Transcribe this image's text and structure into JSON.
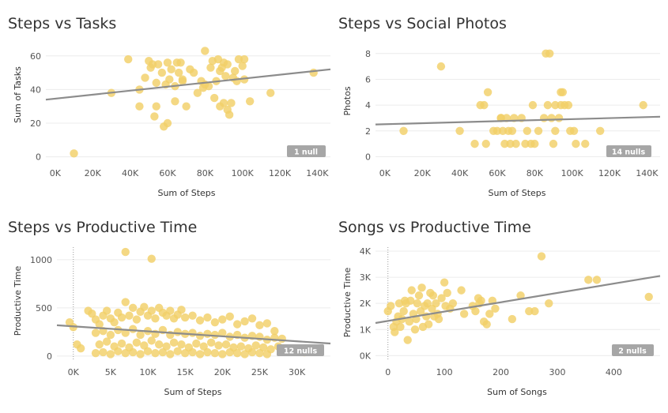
{
  "colors": {
    "point": "#f2cf68",
    "trend": "#8c8c8c",
    "grid": "#ececec",
    "null_badge": "#a6a6a6"
  },
  "chart_data": [
    {
      "type": "scatter",
      "title": "Steps vs Tasks",
      "xlabel": "Sum of Steps",
      "ylabel": "Sum of Tasks",
      "xticks": [
        0,
        20000,
        40000,
        60000,
        80000,
        100000,
        120000,
        140000
      ],
      "xtick_labels": [
        "0K",
        "20K",
        "40K",
        "60K",
        "80K",
        "100K",
        "120K",
        "140K"
      ],
      "yticks": [
        0,
        20,
        40,
        60
      ],
      "ytick_labels": [
        "0",
        "20",
        "40",
        "60"
      ],
      "xlim": [
        -5000,
        147000
      ],
      "ylim": [
        -3,
        66
      ],
      "x_zero_line": false,
      "null_badge": "1 null",
      "trend": [
        [
          -5000,
          34
        ],
        [
          147000,
          52
        ]
      ],
      "points": [
        [
          10000,
          2
        ],
        [
          30000,
          38
        ],
        [
          39000,
          58
        ],
        [
          45000,
          40
        ],
        [
          45000,
          30
        ],
        [
          48000,
          47
        ],
        [
          50000,
          57
        ],
        [
          51000,
          53
        ],
        [
          52000,
          55
        ],
        [
          53000,
          24
        ],
        [
          54000,
          44
        ],
        [
          54000,
          30
        ],
        [
          55000,
          55
        ],
        [
          57000,
          50
        ],
        [
          58000,
          18
        ],
        [
          59000,
          43
        ],
        [
          60000,
          20
        ],
        [
          60000,
          56
        ],
        [
          61000,
          46
        ],
        [
          62000,
          52
        ],
        [
          64000,
          33
        ],
        [
          64000,
          42
        ],
        [
          65000,
          56
        ],
        [
          66000,
          50
        ],
        [
          67000,
          56
        ],
        [
          68000,
          45
        ],
        [
          68000,
          46
        ],
        [
          70000,
          30
        ],
        [
          72000,
          52
        ],
        [
          74000,
          50
        ],
        [
          76000,
          38
        ],
        [
          78000,
          45
        ],
        [
          79000,
          41
        ],
        [
          80000,
          63
        ],
        [
          80000,
          43
        ],
        [
          82000,
          42
        ],
        [
          83000,
          53
        ],
        [
          84000,
          57
        ],
        [
          85000,
          35
        ],
        [
          86000,
          45
        ],
        [
          87000,
          58
        ],
        [
          88000,
          51
        ],
        [
          88000,
          30
        ],
        [
          89000,
          53
        ],
        [
          90000,
          56
        ],
        [
          90000,
          32
        ],
        [
          91000,
          48
        ],
        [
          92000,
          28
        ],
        [
          92000,
          55
        ],
        [
          93000,
          25
        ],
        [
          94000,
          32
        ],
        [
          95000,
          47
        ],
        [
          96000,
          51
        ],
        [
          97000,
          45
        ],
        [
          98000,
          58
        ],
        [
          100000,
          54
        ],
        [
          101000,
          58
        ],
        [
          101000,
          46
        ],
        [
          104000,
          33
        ],
        [
          115000,
          38
        ],
        [
          138000,
          50
        ]
      ]
    },
    {
      "type": "scatter",
      "title": "Steps vs Social Photos",
      "xlabel": "Sum of Steps",
      "ylabel": "Photos",
      "xticks": [
        0,
        20000,
        40000,
        60000,
        80000,
        100000,
        120000,
        140000
      ],
      "xtick_labels": [
        "0K",
        "20K",
        "40K",
        "60K",
        "80K",
        "100K",
        "120K",
        "140K"
      ],
      "yticks": [
        0,
        2,
        4,
        6,
        8
      ],
      "ytick_labels": [
        "0",
        "2",
        "4",
        "6",
        "8"
      ],
      "xlim": [
        -5000,
        147000
      ],
      "ylim": [
        -0.4,
        8.6
      ],
      "x_zero_line": false,
      "null_badge": "14 nulls",
      "trend": [
        [
          -5000,
          2.5
        ],
        [
          147000,
          3.1
        ]
      ],
      "points": [
        [
          10000,
          2
        ],
        [
          30000,
          7
        ],
        [
          40000,
          2
        ],
        [
          48000,
          1
        ],
        [
          51000,
          4
        ],
        [
          53000,
          4
        ],
        [
          54000,
          1
        ],
        [
          55000,
          5
        ],
        [
          58000,
          2
        ],
        [
          60000,
          2
        ],
        [
          62000,
          3
        ],
        [
          62000,
          3
        ],
        [
          63000,
          2
        ],
        [
          64000,
          1
        ],
        [
          65000,
          3
        ],
        [
          66000,
          2
        ],
        [
          67000,
          1
        ],
        [
          68000,
          2
        ],
        [
          69000,
          3
        ],
        [
          70000,
          1
        ],
        [
          73000,
          3
        ],
        [
          75000,
          1
        ],
        [
          76000,
          2
        ],
        [
          78000,
          1
        ],
        [
          79000,
          4
        ],
        [
          80000,
          1
        ],
        [
          82000,
          2
        ],
        [
          85000,
          3
        ],
        [
          86000,
          8
        ],
        [
          88000,
          8
        ],
        [
          87000,
          4
        ],
        [
          89000,
          3
        ],
        [
          90000,
          1
        ],
        [
          91000,
          4
        ],
        [
          91000,
          2
        ],
        [
          93000,
          3
        ],
        [
          94000,
          4
        ],
        [
          94000,
          5
        ],
        [
          95000,
          5
        ],
        [
          96000,
          4
        ],
        [
          98000,
          4
        ],
        [
          99000,
          2
        ],
        [
          101000,
          2
        ],
        [
          102000,
          1
        ],
        [
          107000,
          1
        ],
        [
          115000,
          2
        ],
        [
          138000,
          4
        ]
      ]
    },
    {
      "type": "scatter",
      "title": "Steps vs Productive Time",
      "xlabel": "Sum of Steps",
      "ylabel": "Productive Time",
      "xticks": [
        0,
        5000,
        10000,
        15000,
        20000,
        25000,
        30000
      ],
      "xtick_labels": [
        "0K",
        "5K",
        "10K",
        "15K",
        "20K",
        "25K",
        "30K"
      ],
      "yticks": [
        0,
        500,
        1000
      ],
      "ytick_labels": [
        "0",
        "500",
        "1000"
      ],
      "xlim": [
        -2200,
        34500
      ],
      "ylim": [
        -50,
        1130
      ],
      "x_zero_line": true,
      "null_badge": "12 nulls",
      "trend": [
        [
          -2200,
          320
        ],
        [
          34500,
          130
        ]
      ],
      "points": [
        [
          7000,
          1080
        ],
        [
          10500,
          1010
        ],
        [
          2000,
          470
        ],
        [
          2500,
          440
        ],
        [
          3000,
          380
        ],
        [
          3500,
          330
        ],
        [
          4000,
          420
        ],
        [
          4500,
          470
        ],
        [
          5000,
          390
        ],
        [
          5500,
          350
        ],
        [
          6000,
          450
        ],
        [
          6500,
          400
        ],
        [
          7000,
          560
        ],
        [
          7500,
          420
        ],
        [
          8000,
          500
        ],
        [
          8500,
          380
        ],
        [
          9000,
          460
        ],
        [
          9500,
          510
        ],
        [
          10000,
          420
        ],
        [
          10500,
          470
        ],
        [
          11000,
          390
        ],
        [
          11500,
          500
        ],
        [
          12000,
          450
        ],
        [
          12500,
          420
        ],
        [
          13000,
          470
        ],
        [
          13500,
          390
        ],
        [
          14000,
          430
        ],
        [
          14500,
          480
        ],
        [
          15000,
          400
        ],
        [
          16000,
          420
        ],
        [
          17000,
          370
        ],
        [
          18000,
          400
        ],
        [
          19000,
          350
        ],
        [
          20000,
          380
        ],
        [
          21000,
          410
        ],
        [
          22000,
          330
        ],
        [
          23000,
          360
        ],
        [
          24000,
          390
        ],
        [
          25000,
          320
        ],
        [
          26000,
          340
        ],
        [
          27000,
          260
        ],
        [
          -500,
          350
        ],
        [
          0,
          300
        ],
        [
          3000,
          240
        ],
        [
          4000,
          260
        ],
        [
          5000,
          220
        ],
        [
          6000,
          270
        ],
        [
          7000,
          240
        ],
        [
          8000,
          280
        ],
        [
          9000,
          220
        ],
        [
          10000,
          260
        ],
        [
          11000,
          230
        ],
        [
          12000,
          270
        ],
        [
          13000,
          220
        ],
        [
          14000,
          250
        ],
        [
          15000,
          230
        ],
        [
          16000,
          240
        ],
        [
          17000,
          210
        ],
        [
          18000,
          230
        ],
        [
          19000,
          220
        ],
        [
          20000,
          240
        ],
        [
          21000,
          200
        ],
        [
          22000,
          220
        ],
        [
          23000,
          190
        ],
        [
          24000,
          210
        ],
        [
          25000,
          200
        ],
        [
          26000,
          170
        ],
        [
          27000,
          190
        ],
        [
          28000,
          180
        ],
        [
          3500,
          120
        ],
        [
          4500,
          150
        ],
        [
          5500,
          100
        ],
        [
          6500,
          130
        ],
        [
          7500,
          90
        ],
        [
          8500,
          140
        ],
        [
          9500,
          110
        ],
        [
          10500,
          160
        ],
        [
          11500,
          120
        ],
        [
          12500,
          100
        ],
        [
          13500,
          140
        ],
        [
          14500,
          120
        ],
        [
          15500,
          90
        ],
        [
          16500,
          130
        ],
        [
          17500,
          100
        ],
        [
          18500,
          140
        ],
        [
          19500,
          110
        ],
        [
          20500,
          120
        ],
        [
          21500,
          90
        ],
        [
          22500,
          100
        ],
        [
          23500,
          80
        ],
        [
          24500,
          110
        ],
        [
          25500,
          90
        ],
        [
          26500,
          70
        ],
        [
          27500,
          100
        ],
        [
          28500,
          80
        ],
        [
          500,
          120
        ],
        [
          1000,
          80
        ],
        [
          3000,
          30
        ],
        [
          4000,
          40
        ],
        [
          5000,
          20
        ],
        [
          6000,
          50
        ],
        [
          7000,
          30
        ],
        [
          8000,
          40
        ],
        [
          9000,
          20
        ],
        [
          10000,
          50
        ],
        [
          11000,
          30
        ],
        [
          12000,
          40
        ],
        [
          13000,
          20
        ],
        [
          14000,
          50
        ],
        [
          15000,
          30
        ],
        [
          16000,
          40
        ],
        [
          17000,
          20
        ],
        [
          18000,
          40
        ],
        [
          19000,
          30
        ],
        [
          20000,
          20
        ],
        [
          21000,
          40
        ],
        [
          22000,
          30
        ],
        [
          23000,
          20
        ],
        [
          24000,
          40
        ],
        [
          25000,
          30
        ],
        [
          26000,
          20
        ],
        [
          30000,
          60
        ],
        [
          31000,
          40
        ]
      ]
    },
    {
      "type": "scatter",
      "title": "Songs vs Productive Time",
      "xlabel": "Sum of Songs",
      "ylabel": "Productive Time",
      "xticks": [
        0,
        100,
        200,
        300,
        400
      ],
      "xtick_labels": [
        "0",
        "100",
        "200",
        "300",
        "400"
      ],
      "yticks": [
        0,
        1000,
        2000,
        3000,
        4000
      ],
      "ytick_labels": [
        "0K",
        "1K",
        "2K",
        "3K",
        "4K"
      ],
      "xlim": [
        -22,
        482
      ],
      "ylim": [
        -200,
        4150
      ],
      "x_zero_line": true,
      "null_badge": "2 nulls",
      "trend": [
        [
          -22,
          1250
        ],
        [
          482,
          3050
        ]
      ],
      "points": [
        [
          0,
          1700
        ],
        [
          5,
          1900
        ],
        [
          10,
          1100
        ],
        [
          12,
          900
        ],
        [
          15,
          1300
        ],
        [
          18,
          1500
        ],
        [
          20,
          2000
        ],
        [
          22,
          1100
        ],
        [
          25,
          1400
        ],
        [
          28,
          1700
        ],
        [
          30,
          2100
        ],
        [
          32,
          2000
        ],
        [
          35,
          600
        ],
        [
          38,
          1300
        ],
        [
          40,
          2100
        ],
        [
          42,
          2500
        ],
        [
          45,
          1600
        ],
        [
          48,
          1000
        ],
        [
          50,
          1400
        ],
        [
          52,
          2000
        ],
        [
          55,
          2300
        ],
        [
          58,
          1700
        ],
        [
          60,
          2600
        ],
        [
          62,
          1100
        ],
        [
          65,
          1900
        ],
        [
          68,
          1500
        ],
        [
          70,
          2000
        ],
        [
          72,
          1200
        ],
        [
          75,
          2400
        ],
        [
          78,
          1800
        ],
        [
          80,
          2300
        ],
        [
          82,
          1500
        ],
        [
          85,
          2000
        ],
        [
          88,
          1600
        ],
        [
          90,
          1400
        ],
        [
          95,
          2200
        ],
        [
          100,
          2800
        ],
        [
          102,
          1900
        ],
        [
          105,
          2400
        ],
        [
          110,
          1800
        ],
        [
          115,
          2000
        ],
        [
          130,
          2500
        ],
        [
          135,
          1600
        ],
        [
          150,
          1900
        ],
        [
          155,
          1700
        ],
        [
          160,
          2200
        ],
        [
          162,
          2000
        ],
        [
          165,
          2100
        ],
        [
          170,
          1300
        ],
        [
          175,
          1200
        ],
        [
          180,
          1600
        ],
        [
          185,
          2100
        ],
        [
          190,
          1800
        ],
        [
          220,
          1400
        ],
        [
          235,
          2300
        ],
        [
          250,
          1700
        ],
        [
          260,
          1700
        ],
        [
          272,
          3800
        ],
        [
          285,
          2000
        ],
        [
          355,
          2900
        ],
        [
          370,
          2900
        ],
        [
          462,
          2250
        ]
      ]
    }
  ]
}
